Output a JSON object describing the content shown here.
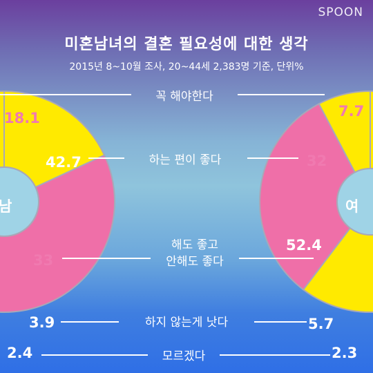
{
  "brand": "SPOON",
  "title": "미혼남녀의 결혼 필요성에 대한 생각",
  "subtitle": "2015년 8~10월 조사, 20~44세 2,383명 기준, 단위%",
  "either_label": [
    "해도 좋고",
    "안해도 좋다"
  ],
  "colors": {
    "yellow": "#ffea00",
    "pink": "#ef6fa8",
    "center": "#9fd3e6",
    "edge": "#a8a8b8"
  },
  "chart_data": [
    {
      "type": "pie",
      "name": "남",
      "categories": [
        "꼭 해야한다",
        "하는 편이 좋다",
        "해도 좋고 안해도 좋다",
        "하지 않는게 낫다",
        "모르겠다"
      ],
      "values": [
        18.1,
        42.7,
        33,
        3.9,
        2.4
      ]
    },
    {
      "type": "pie",
      "name": "여",
      "categories": [
        "꼭 해야한다",
        "하는 편이 좋다",
        "해도 좋고 안해도 좋다",
        "하지 않는게 낫다",
        "모르겠다"
      ],
      "values": [
        7.7,
        32,
        52.4,
        5.7,
        2.3
      ]
    }
  ]
}
